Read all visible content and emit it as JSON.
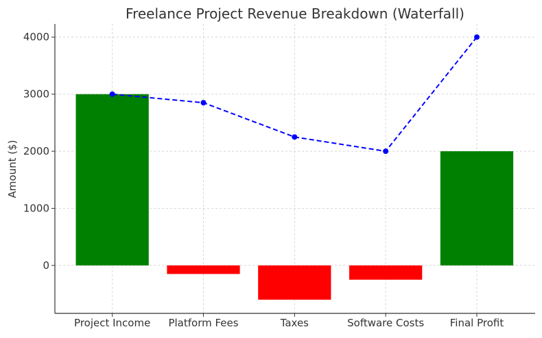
{
  "chart_data": {
    "type": "bar",
    "title": "Freelance Project Revenue Breakdown (Waterfall)",
    "xlabel": "",
    "ylabel": "Amount ($)",
    "categories": [
      "Project Income",
      "Platform Fees",
      "Taxes",
      "Software Costs",
      "Final Profit"
    ],
    "values": [
      3000,
      -150,
      -600,
      -250,
      2000
    ],
    "bar_colors": [
      "#008000",
      "#ff0000",
      "#ff0000",
      "#ff0000",
      "#008000"
    ],
    "line": {
      "style": "dashed",
      "marker": "circle",
      "color": "#0000ff",
      "values": [
        3000,
        2850,
        2250,
        2000,
        4000
      ]
    },
    "ylim": [
      -840,
      4230
    ],
    "yticks": [
      0,
      1000,
      2000,
      3000,
      4000
    ],
    "grid": true
  }
}
